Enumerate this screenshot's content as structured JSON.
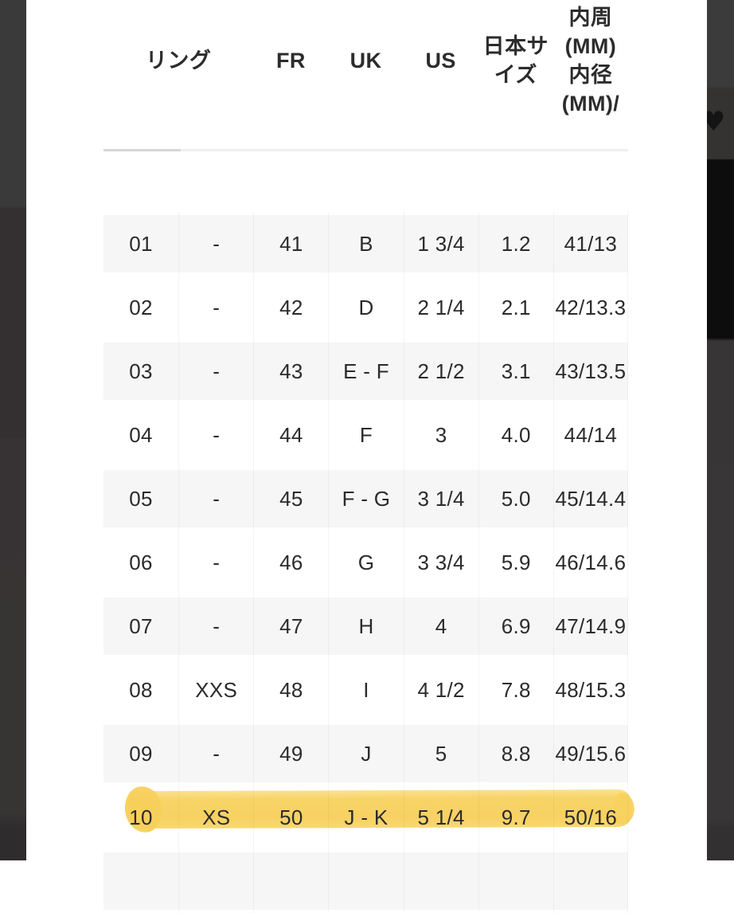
{
  "table": {
    "headers": [
      {
        "id": "ring",
        "label": "リング",
        "colspan": 2
      },
      {
        "id": "fr",
        "label": "FR"
      },
      {
        "id": "uk",
        "label": "UK"
      },
      {
        "id": "us",
        "label": "US"
      },
      {
        "id": "jp",
        "label": "日本サ\nイズ"
      },
      {
        "id": "inner",
        "label": "内周\n(MM)\n内径\n(MM)/"
      }
    ],
    "rows": [
      [
        "01",
        "-",
        "41",
        "B",
        "1 3/4",
        "1.2",
        "41/13"
      ],
      [
        "02",
        "-",
        "42",
        "D",
        "2 1/4",
        "2.1",
        "42/13.3"
      ],
      [
        "03",
        "-",
        "43",
        "E - F",
        "2 1/2",
        "3.1",
        "43/13.5"
      ],
      [
        "04",
        "-",
        "44",
        "F",
        "3",
        "4.0",
        "44/14"
      ],
      [
        "05",
        "-",
        "45",
        "F - G",
        "3 1/4",
        "5.0",
        "45/14.4"
      ],
      [
        "06",
        "-",
        "46",
        "G",
        "3 3/4",
        "5.9",
        "46/14.6"
      ],
      [
        "07",
        "-",
        "47",
        "H",
        "4",
        "6.9",
        "47/14.9"
      ],
      [
        "08",
        "XXS",
        "48",
        "I",
        "4 1/2",
        "7.8",
        "48/15.3"
      ],
      [
        "09",
        "-",
        "49",
        "J",
        "5",
        "8.8",
        "49/15.6"
      ],
      [
        "10",
        "XS",
        "50",
        "J - K",
        "5 1/4",
        "9.7",
        "50/16"
      ]
    ],
    "highlighted_row": "10",
    "partial_next_row": true
  },
  "icons": {
    "wishlist_heart": "♥"
  },
  "colors": {
    "highlight_marker": "#f6cd55",
    "text": "#2b2b2b",
    "stripe": "#f6f6f6",
    "backdrop_dark": "#383636",
    "backdrop_black": "#0d0d0d",
    "scrollbar_thumb": "#d6d6d6"
  }
}
